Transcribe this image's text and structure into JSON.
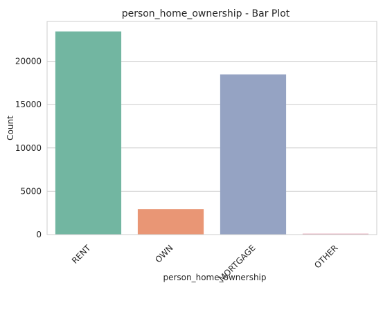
{
  "chart_data": {
    "type": "bar",
    "title": "person_home_ownership - Bar Plot",
    "xlabel": "person_home_ownership",
    "ylabel": "Count",
    "categories": [
      "RENT",
      "OWN",
      "MORTGAGE",
      "OTHER"
    ],
    "values": [
      23443,
      2942,
      18489,
      111
    ],
    "colors": [
      "#72b6a1",
      "#e99675",
      "#95a3c3",
      "#e5a6b5"
    ],
    "ylim": [
      0,
      24600
    ],
    "yticks": [
      0,
      5000,
      10000,
      15000,
      20000
    ],
    "ytick_labels": [
      "0",
      "5000",
      "10000",
      "15000",
      "20000"
    ],
    "grid": "y-axis",
    "style": "whitegrid"
  }
}
